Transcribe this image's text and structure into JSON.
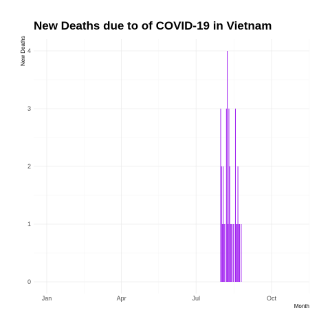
{
  "chart_data": {
    "type": "bar",
    "title": "New Deaths due to of COVID-19 in Vietnam",
    "xlabel": "Month",
    "ylabel": "New Deaths",
    "x_ticks": [
      {
        "label": "Jan",
        "date": "2020-01-01"
      },
      {
        "label": "Apr",
        "date": "2020-04-01"
      },
      {
        "label": "Jul",
        "date": "2020-07-01"
      },
      {
        "label": "Oct",
        "date": "2020-10-01"
      }
    ],
    "y_ticks": [
      "0",
      "1",
      "2",
      "3",
      "4"
    ],
    "xlim": [
      "2020-01-01",
      "2020-12-31"
    ],
    "ylim": [
      0,
      4.3
    ],
    "grid": true,
    "bar_color": "#a020f0",
    "series": [
      {
        "points": [
          {
            "x": "2020-07-31",
            "y": 3
          },
          {
            "x": "2020-08-01",
            "y": 2
          },
          {
            "x": "2020-08-02",
            "y": 1
          },
          {
            "x": "2020-08-03",
            "y": 2
          },
          {
            "x": "2020-08-04",
            "y": 1
          },
          {
            "x": "2020-08-05",
            "y": 1
          },
          {
            "x": "2020-08-07",
            "y": 3
          },
          {
            "x": "2020-08-08",
            "y": 4
          },
          {
            "x": "2020-08-09",
            "y": 1
          },
          {
            "x": "2020-08-10",
            "y": 3
          },
          {
            "x": "2020-08-11",
            "y": 2
          },
          {
            "x": "2020-08-12",
            "y": 1
          },
          {
            "x": "2020-08-13",
            "y": 1
          },
          {
            "x": "2020-08-15",
            "y": 1
          },
          {
            "x": "2020-08-16",
            "y": 1
          },
          {
            "x": "2020-08-18",
            "y": 3
          },
          {
            "x": "2020-08-19",
            "y": 1
          },
          {
            "x": "2020-08-20",
            "y": 1
          },
          {
            "x": "2020-08-21",
            "y": 2
          },
          {
            "x": "2020-08-22",
            "y": 1
          },
          {
            "x": "2020-08-23",
            "y": 1
          },
          {
            "x": "2020-08-25",
            "y": 1
          }
        ]
      }
    ]
  }
}
